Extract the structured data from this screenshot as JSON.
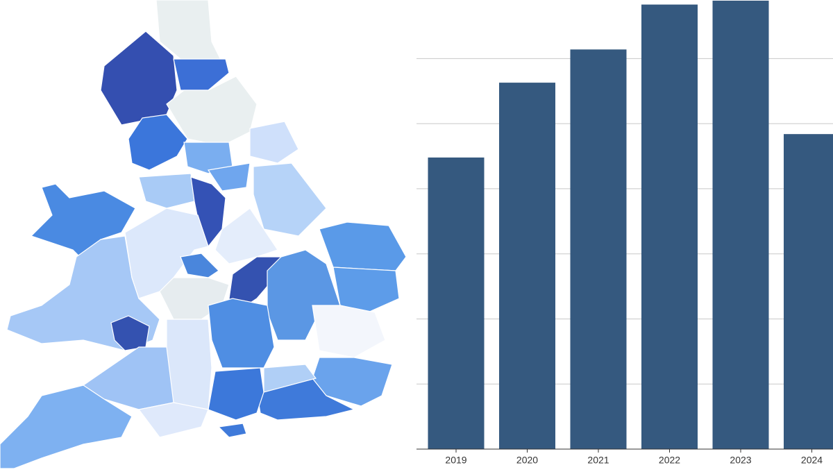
{
  "chart_data": {
    "type": "bar",
    "categories": [
      "2019",
      "2020",
      "2021",
      "2022",
      "2023",
      "2024"
    ],
    "values": [
      4.48,
      5.63,
      6.14,
      6.83,
      6.89,
      4.84
    ],
    "color": "#35597f",
    "ylim": [
      0,
      6.9
    ],
    "yticks": [
      0,
      1,
      2,
      3,
      4,
      5,
      6
    ],
    "grid": true
  }
}
